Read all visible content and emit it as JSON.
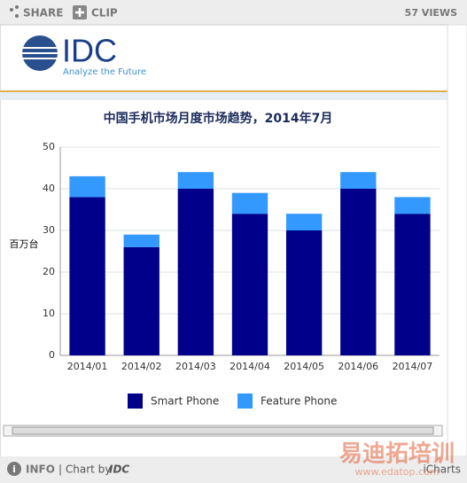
{
  "header": {
    "share": "SHARE",
    "clip": "CLIP",
    "views": "57 VIEWS"
  },
  "logo": {
    "name": "IDC",
    "tagline": "Analyze the Future"
  },
  "chart_data": {
    "type": "stacked_bar",
    "title": "中国手机市场月度市场趋势，2014年7月",
    "y_label": "百万台",
    "categories": [
      "2014/01",
      "2014/02",
      "2014/03",
      "2014/04",
      "2014/05",
      "2014/06",
      "2014/07"
    ],
    "series": [
      {
        "name": "Smart Phone",
        "color": "#00008b",
        "values": [
          38,
          26,
          40,
          34,
          30,
          40,
          34
        ]
      },
      {
        "name": "Feature Phone",
        "color": "#3399ff",
        "values": [
          5,
          3,
          4,
          5,
          4,
          4,
          4
        ]
      }
    ],
    "ylim": [
      0,
      50
    ],
    "yticks": [
      0,
      10,
      20,
      30,
      40,
      50
    ],
    "grid": true,
    "legend": "bottom"
  },
  "footer": {
    "info": "INFO",
    "chart_by": "| Chart by",
    "chart_by_brand": "IDC",
    "brand": "iCharts"
  },
  "watermark": {
    "text": "易迪拓培训",
    "url": "www.edatop.com"
  }
}
